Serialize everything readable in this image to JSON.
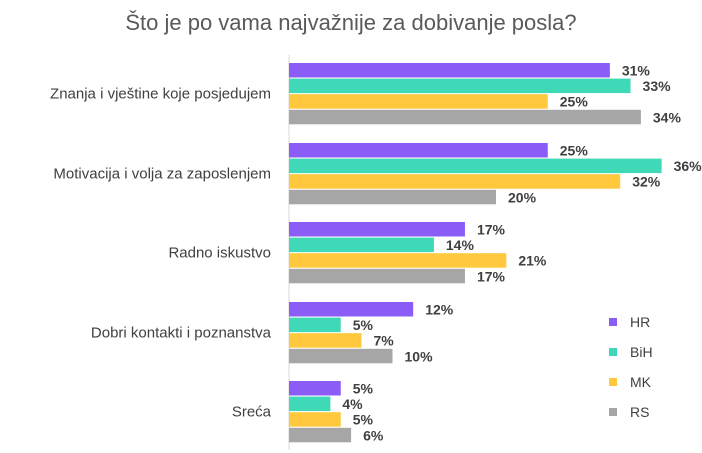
{
  "chart_data": {
    "type": "bar",
    "orientation": "horizontal",
    "title": "Što je po vama najvažnije za dobivanje posla?",
    "xlabel": "",
    "ylabel": "",
    "xlim": [
      0,
      40
    ],
    "grid": false,
    "legend_position": "right",
    "value_suffix": "%",
    "categories": [
      "Znanja i vještine koje posjedujem",
      "Motivacija i volja za zaposlenjem",
      "Radno iskustvo",
      "Dobri kontakti i poznanstva",
      "Sreća"
    ],
    "series": [
      {
        "name": "HR",
        "color": "#8B5CF6",
        "values": [
          31,
          25,
          17,
          12,
          5
        ]
      },
      {
        "name": "BiH",
        "color": "#40D9B8",
        "values": [
          33,
          36,
          14,
          5,
          4
        ]
      },
      {
        "name": "MK",
        "color": "#FFC83D",
        "values": [
          25,
          32,
          21,
          7,
          5
        ]
      },
      {
        "name": "RS",
        "color": "#A6A6A6",
        "values": [
          34,
          20,
          17,
          10,
          6
        ]
      }
    ]
  }
}
